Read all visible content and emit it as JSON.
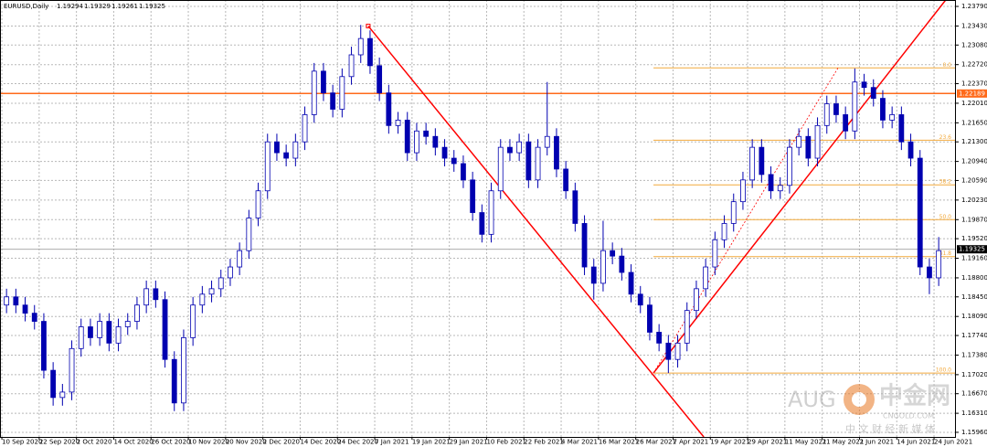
{
  "chart_data": {
    "type": "candlestick",
    "title": "EURUSD,Daily",
    "header_values": [
      1.19294,
      1.19329,
      1.19261,
      1.19325
    ],
    "xlim": [
      -0.4,
      204.5
    ],
    "ylim": [
      1.15875,
      1.23908
    ],
    "grid": true,
    "up_color": "#ffffff",
    "down_color": "#0000b0",
    "wick_color": "#0000b0",
    "xticks": [
      {
        "value": 0,
        "label": "10 Sep 2020"
      },
      {
        "value": 8,
        "label": "22 Sep 2020"
      },
      {
        "value": 16,
        "label": "2 Oct 2020"
      },
      {
        "value": 24,
        "label": "14 Oct 2020"
      },
      {
        "value": 32,
        "label": "26 Oct 2020"
      },
      {
        "value": 40,
        "label": "10 Nov 2020"
      },
      {
        "value": 48,
        "label": "20 Nov 2020"
      },
      {
        "value": 56,
        "label": "2 Dec 2020"
      },
      {
        "value": 64,
        "label": "14 Dec 2020"
      },
      {
        "value": 72,
        "label": "24 Dec 2020"
      },
      {
        "value": 80,
        "label": "7 Jan 2021"
      },
      {
        "value": 88,
        "label": "19 Jan 2021"
      },
      {
        "value": 96,
        "label": "29 Jan 2021"
      },
      {
        "value": 104,
        "label": "10 Feb 2021"
      },
      {
        "value": 112,
        "label": "22 Feb 2021"
      },
      {
        "value": 120,
        "label": "4 Mar 2021"
      },
      {
        "value": 128,
        "label": "16 Mar 2021"
      },
      {
        "value": 136,
        "label": "26 Mar 2021"
      },
      {
        "value": 144,
        "label": "7 Apr 2021"
      },
      {
        "value": 152,
        "label": "19 Apr 2021"
      },
      {
        "value": 160,
        "label": "29 Apr 2021"
      },
      {
        "value": 168,
        "label": "11 May 2021"
      },
      {
        "value": 176,
        "label": "21 May 2021"
      },
      {
        "value": 184,
        "label": "2 Jun 2021"
      },
      {
        "value": 192,
        "label": "14 Jun 2021"
      },
      {
        "value": 200,
        "label": "24 Jun 2021"
      }
    ],
    "yticks": [
      {
        "value": 1.2379,
        "label": "1.23790"
      },
      {
        "value": 1.2343,
        "label": "1.23430"
      },
      {
        "value": 1.2308,
        "label": "1.23080"
      },
      {
        "value": 1.2272,
        "label": "1.22720"
      },
      {
        "value": 1.2237,
        "label": "1.22370"
      },
      {
        "value": 1.2201,
        "label": "1.22010"
      },
      {
        "value": 1.2165,
        "label": "1.21650"
      },
      {
        "value": 1.213,
        "label": "1.21300"
      },
      {
        "value": 1.2094,
        "label": "1.20940"
      },
      {
        "value": 1.2059,
        "label": "1.20590"
      },
      {
        "value": 1.2023,
        "label": "1.20230"
      },
      {
        "value": 1.1987,
        "label": "1.19870"
      },
      {
        "value": 1.1952,
        "label": "1.19520"
      },
      {
        "value": 1.1916,
        "label": "1.19160"
      },
      {
        "value": 1.188,
        "label": "1.18800"
      },
      {
        "value": 1.1845,
        "label": "1.18450"
      },
      {
        "value": 1.1809,
        "label": "1.18090"
      },
      {
        "value": 1.1774,
        "label": "1.17740"
      },
      {
        "value": 1.1738,
        "label": "1.17380"
      },
      {
        "value": 1.1702,
        "label": "1.17020"
      },
      {
        "value": 1.1667,
        "label": "1.16670"
      },
      {
        "value": 1.1631,
        "label": "1.16310"
      },
      {
        "value": 1.1596,
        "label": "1.15960"
      }
    ],
    "x": [
      1,
      3,
      5,
      7,
      9,
      11,
      13,
      15,
      17,
      19,
      21,
      23,
      25,
      27,
      29,
      31,
      33,
      35,
      37,
      39,
      41,
      43,
      45,
      47,
      49,
      51,
      53,
      55,
      57,
      59,
      61,
      63,
      65,
      67,
      69,
      71,
      73,
      75,
      77,
      79,
      81,
      83,
      85,
      87,
      89,
      91,
      93,
      95,
      97,
      99,
      101,
      103,
      105,
      107,
      109,
      111,
      113,
      115,
      117,
      119,
      121,
      123,
      125,
      127,
      129,
      131,
      133,
      135,
      137,
      139,
      141,
      143,
      145,
      147,
      149,
      151,
      153,
      155,
      157,
      159,
      161,
      163,
      165,
      167,
      169,
      171,
      173,
      175,
      177,
      179,
      181,
      183,
      185,
      187,
      189,
      191,
      193,
      195,
      197,
      199,
      201
    ],
    "open": [
      1.183,
      1.1845,
      1.183,
      1.1815,
      1.18,
      1.171,
      1.166,
      1.167,
      1.175,
      1.179,
      1.177,
      1.18,
      1.176,
      1.179,
      1.18,
      1.183,
      1.186,
      1.184,
      1.173,
      1.165,
      1.177,
      1.183,
      1.185,
      1.186,
      1.188,
      1.19,
      1.193,
      1.199,
      1.204,
      1.213,
      1.211,
      1.21,
      1.213,
      1.218,
      1.226,
      1.222,
      1.219,
      1.225,
      1.229,
      1.232,
      1.227,
      1.222,
      1.216,
      1.217,
      1.211,
      1.215,
      1.214,
      1.212,
      1.21,
      1.209,
      1.206,
      1.2,
      1.196,
      1.204,
      1.212,
      1.211,
      1.213,
      1.206,
      1.212,
      1.214,
      1.208,
      1.204,
      1.198,
      1.19,
      1.187,
      1.193,
      1.192,
      1.189,
      1.185,
      1.183,
      1.178,
      1.176,
      1.173,
      1.176,
      1.182,
      1.186,
      1.19,
      1.195,
      1.198,
      1.202,
      1.206,
      1.212,
      1.207,
      1.204,
      1.205,
      1.212,
      1.214,
      1.21,
      1.216,
      1.22,
      1.218,
      1.215,
      1.224,
      1.223,
      1.221,
      1.217,
      1.218,
      1.213,
      1.21,
      1.19,
      1.188
    ],
    "high": [
      1.186,
      1.186,
      1.1845,
      1.183,
      1.1815,
      1.1725,
      1.1685,
      1.1765,
      1.1805,
      1.1805,
      1.1815,
      1.1815,
      1.1805,
      1.1815,
      1.1845,
      1.1875,
      1.1875,
      1.1855,
      1.1745,
      1.1785,
      1.1845,
      1.1865,
      1.1875,
      1.1895,
      1.1915,
      1.1945,
      1.2005,
      1.2055,
      1.2145,
      1.2145,
      1.2125,
      1.2145,
      1.2195,
      1.2275,
      1.2275,
      1.2235,
      1.2265,
      1.2305,
      1.2345,
      1.2335,
      1.2285,
      1.2235,
      1.2185,
      1.2185,
      1.2165,
      1.2165,
      1.2155,
      1.2135,
      1.2115,
      1.2105,
      1.2075,
      1.2015,
      1.2055,
      1.2135,
      1.2135,
      1.2145,
      1.2145,
      1.2135,
      1.224,
      1.2155,
      1.2095,
      1.2055,
      1.1995,
      1.1915,
      1.1985,
      1.1945,
      1.1935,
      1.1905,
      1.1865,
      1.1845,
      1.1795,
      1.1775,
      1.1775,
      1.1835,
      1.1875,
      1.1915,
      1.1965,
      1.1995,
      1.2035,
      1.2075,
      1.2135,
      1.2135,
      1.2085,
      1.2065,
      1.2135,
      1.2155,
      1.2155,
      1.2175,
      1.2215,
      1.2215,
      1.2195,
      1.2265,
      1.2255,
      1.2245,
      1.2225,
      1.2195,
      1.2195,
      1.2145,
      1.2115,
      1.1915,
      1.1955
    ],
    "low": [
      1.1815,
      1.1815,
      1.18,
      1.1785,
      1.1695,
      1.1645,
      1.1645,
      1.1655,
      1.1735,
      1.1755,
      1.1755,
      1.1745,
      1.1745,
      1.1775,
      1.1785,
      1.1815,
      1.1825,
      1.1715,
      1.1635,
      1.1635,
      1.1755,
      1.1815,
      1.1835,
      1.1845,
      1.1865,
      1.1885,
      1.1915,
      1.1975,
      1.2025,
      1.2095,
      1.2085,
      1.2085,
      1.2115,
      1.2165,
      1.2205,
      1.2175,
      1.2175,
      1.2235,
      1.2275,
      1.2255,
      1.2205,
      1.2145,
      1.2145,
      1.2095,
      1.2095,
      1.2125,
      1.2105,
      1.2085,
      1.2075,
      1.2045,
      1.1985,
      1.1945,
      1.1945,
      1.2025,
      1.2095,
      1.2095,
      1.2045,
      1.2045,
      1.2105,
      1.2065,
      1.2025,
      1.1965,
      1.1885,
      1.184,
      1.1855,
      1.1905,
      1.1875,
      1.1835,
      1.1815,
      1.1765,
      1.1745,
      1.1705,
      1.1715,
      1.1745,
      1.1805,
      1.1845,
      1.1885,
      1.1935,
      1.1965,
      1.2005,
      1.2045,
      1.2055,
      1.2025,
      1.2025,
      1.2035,
      1.2105,
      1.2085,
      1.2085,
      1.2145,
      1.2165,
      1.2135,
      1.2135,
      1.2215,
      1.2195,
      1.2155,
      1.2155,
      1.2115,
      1.2085,
      1.1885,
      1.185,
      1.1865
    ],
    "close": [
      1.1845,
      1.183,
      1.1815,
      1.18,
      1.171,
      1.166,
      1.167,
      1.175,
      1.179,
      1.177,
      1.18,
      1.176,
      1.179,
      1.18,
      1.183,
      1.186,
      1.184,
      1.173,
      1.165,
      1.177,
      1.183,
      1.185,
      1.186,
      1.188,
      1.19,
      1.193,
      1.199,
      1.204,
      1.213,
      1.211,
      1.21,
      1.213,
      1.218,
      1.226,
      1.222,
      1.219,
      1.225,
      1.229,
      1.232,
      1.227,
      1.222,
      1.216,
      1.217,
      1.211,
      1.215,
      1.214,
      1.212,
      1.21,
      1.209,
      1.206,
      1.2,
      1.196,
      1.204,
      1.212,
      1.211,
      1.213,
      1.206,
      1.212,
      1.214,
      1.208,
      1.204,
      1.198,
      1.19,
      1.187,
      1.193,
      1.192,
      1.189,
      1.185,
      1.183,
      1.178,
      1.176,
      1.173,
      1.176,
      1.182,
      1.186,
      1.19,
      1.195,
      1.198,
      1.202,
      1.206,
      1.212,
      1.207,
      1.204,
      1.205,
      1.212,
      1.214,
      1.21,
      1.216,
      1.22,
      1.218,
      1.215,
      1.224,
      1.223,
      1.221,
      1.217,
      1.218,
      1.213,
      1.21,
      1.19,
      1.188,
      1.193
    ],
    "hline": {
      "value": 1.22189,
      "color": "#ff6a1a"
    },
    "current_price": {
      "value": 1.19325,
      "color": "#000000"
    },
    "fibonacci": {
      "color": "#f2a93b",
      "start_x": 139.8,
      "levels": [
        {
          "label": "0.0",
          "price": 1.2266
        },
        {
          "label": "23.6",
          "price": 1.2133
        },
        {
          "label": "38.2",
          "price": 1.2051
        },
        {
          "label": "50.0",
          "price": 1.1987
        },
        {
          "label": "61.8",
          "price": 1.1919
        },
        {
          "label": "100.0",
          "price": 1.1705
        }
      ]
    },
    "trendlines": [
      {
        "color": "#ff0000",
        "dashed": false,
        "x": [
          78.6,
          150.6
        ],
        "y": [
          1.2343,
          1.15875
        ]
      },
      {
        "color": "#ff0000",
        "dashed": false,
        "x": [
          139.8,
          202.5
        ],
        "y": [
          1.1705,
          1.23908
        ]
      },
      {
        "color": "#ff0000",
        "dashed": true,
        "x": [
          139.8,
          179.4
        ],
        "y": [
          1.1705,
          1.2266
        ]
      }
    ],
    "watermark": [
      "AUG",
      "中金网",
      "CNGOLD.COM",
      "中 文 财 经 新 媒 体"
    ]
  }
}
